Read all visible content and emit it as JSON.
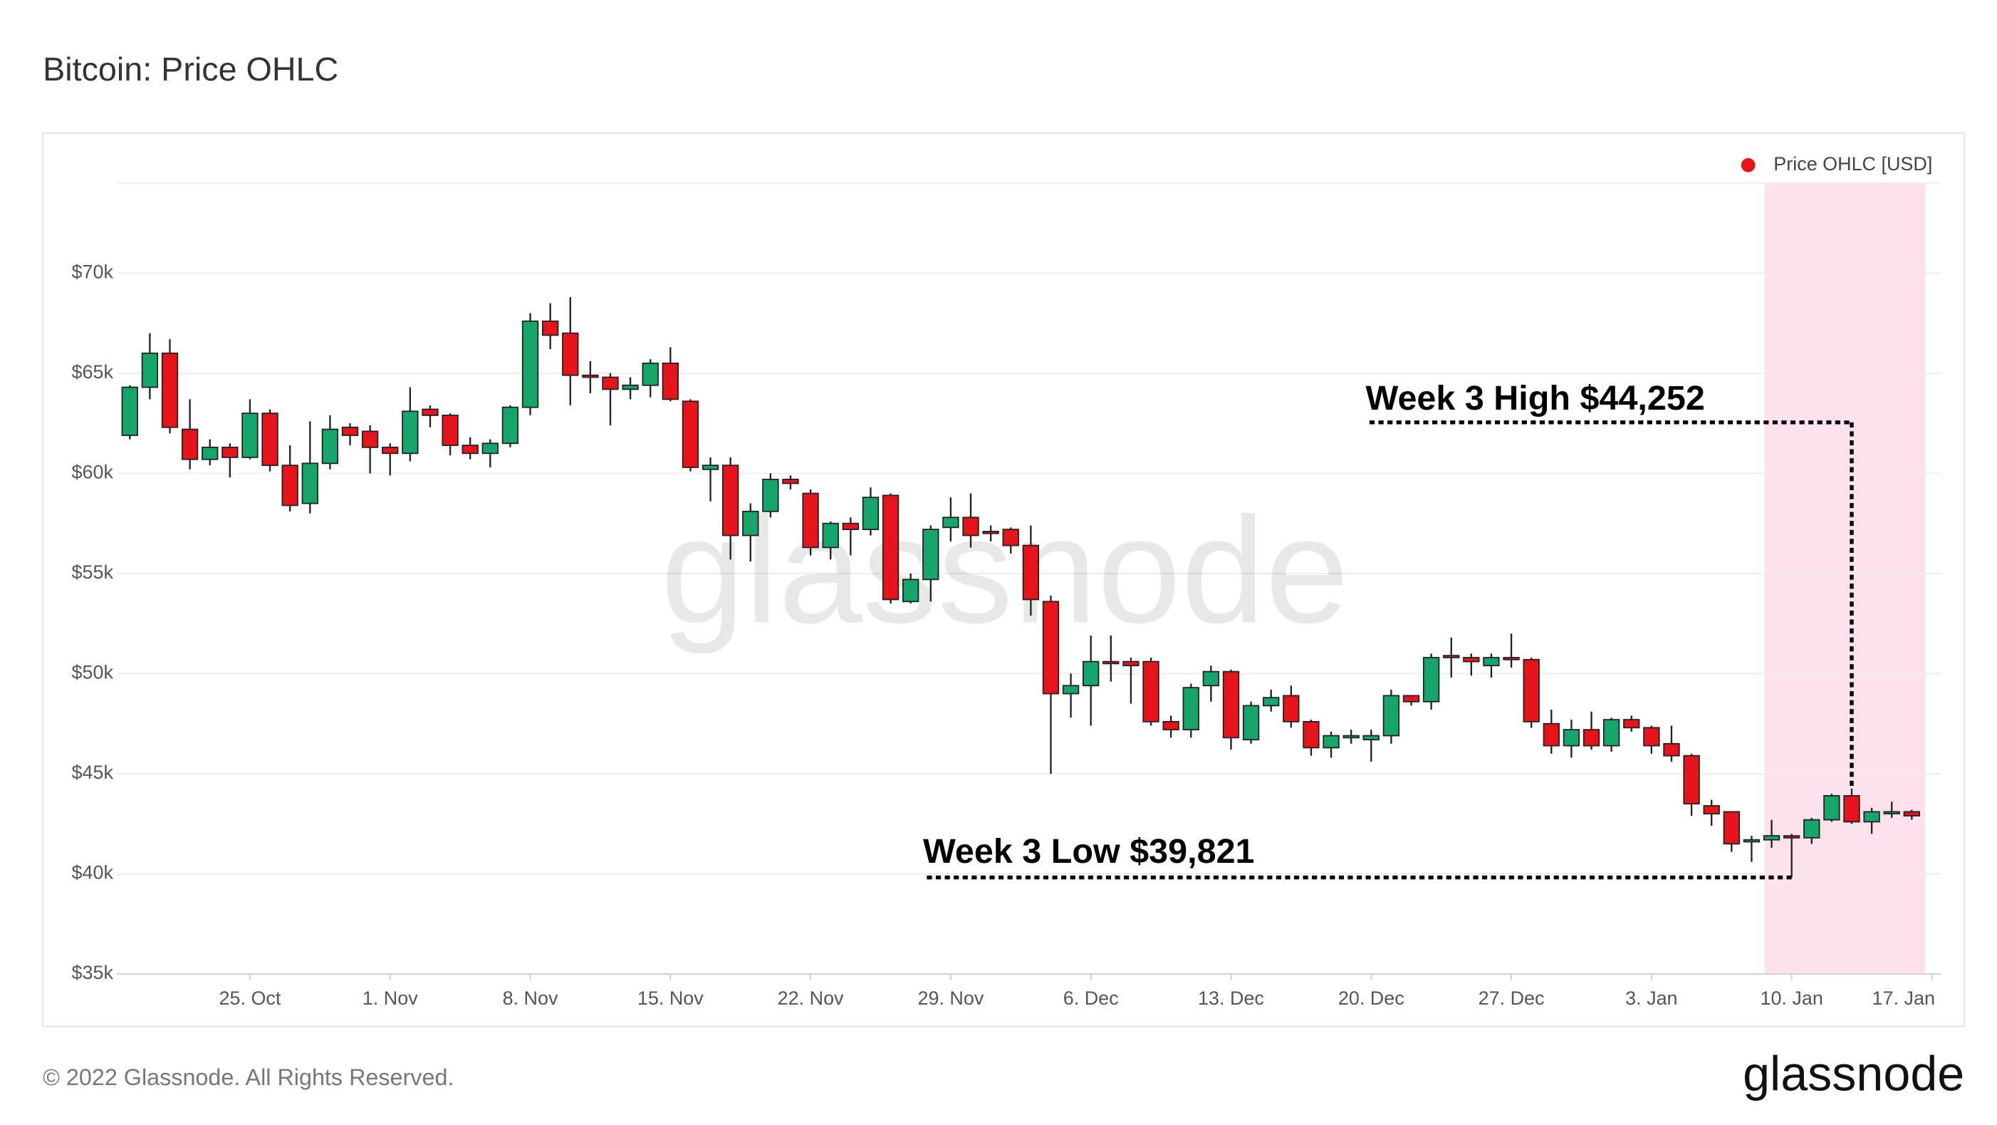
{
  "chart_data": {
    "type": "candlestick",
    "title": "Bitcoin: Price OHLC",
    "categories": [
      null,
      null,
      null,
      null,
      null,
      null,
      "25. Oct",
      null,
      null,
      null,
      null,
      null,
      null,
      "1. Nov",
      null,
      null,
      null,
      null,
      null,
      null,
      "8. Nov",
      null,
      null,
      null,
      null,
      null,
      null,
      "15. Nov",
      null,
      null,
      null,
      null,
      null,
      null,
      "22. Nov",
      null,
      null,
      null,
      null,
      null,
      null,
      "29. Nov",
      null,
      null,
      null,
      null,
      null,
      null,
      "6. Dec",
      null,
      null,
      null,
      null,
      null,
      null,
      "13. Dec",
      null,
      null,
      null,
      null,
      null,
      null,
      "20. Dec",
      null,
      null,
      null,
      null,
      null,
      null,
      "27. Dec",
      null,
      null,
      null,
      null,
      null,
      null,
      "3. Jan",
      null,
      null,
      null,
      null,
      null,
      null,
      "10. Jan",
      null,
      null,
      null,
      null,
      null,
      null,
      "17. Jan"
    ],
    "series": [
      {
        "name": "Price OHLC [USD]",
        "color": "#e8141b",
        "up_color": "#16a56b",
        "down_color": "#e8141b",
        "open": [
          61900,
          64300,
          66000,
          62200,
          60700,
          61300,
          60800,
          63000,
          60400,
          58500,
          60500,
          62300,
          62100,
          61300,
          61000,
          63200,
          62900,
          61400,
          61000,
          61500,
          63300,
          67600,
          67000,
          64900,
          64800,
          64200,
          64400,
          65500,
          63600,
          60200,
          60400,
          56900,
          58100,
          59700,
          59000,
          56300,
          57500,
          57200,
          58900,
          53600,
          54700,
          57300,
          57800,
          57100,
          57200,
          56400,
          53600,
          49000,
          49400,
          50600,
          50600,
          50600,
          47600,
          47200,
          49400,
          50100,
          46700,
          48400,
          48900,
          47600,
          46300,
          46800,
          46700,
          46900,
          48900,
          48600,
          50900,
          50800,
          50400,
          50800,
          50700,
          47500,
          46400,
          47200,
          46400,
          47700,
          47300,
          46500,
          45900,
          43400,
          43100,
          41600,
          41700,
          41900,
          41800,
          42700,
          43900,
          42600,
          43100,
          43100,
          null
        ],
        "high": [
          64400,
          67000,
          66700,
          63700,
          61700,
          61500,
          63700,
          63200,
          61400,
          62600,
          62900,
          62500,
          62400,
          61500,
          64300,
          63400,
          63000,
          61800,
          61700,
          63400,
          68000,
          68500,
          68800,
          65600,
          65000,
          64800,
          65700,
          66300,
          63700,
          60800,
          60800,
          58500,
          60000,
          59900,
          59200,
          57600,
          57800,
          59300,
          59000,
          55000,
          57400,
          58800,
          59000,
          57400,
          57300,
          57400,
          53900,
          50000,
          51900,
          51900,
          50800,
          50800,
          47900,
          49500,
          50400,
          50200,
          48600,
          49200,
          49400,
          47700,
          47100,
          47200,
          47200,
          49200,
          48900,
          51000,
          51800,
          51000,
          51000,
          52000,
          50800,
          48200,
          47700,
          48100,
          47800,
          47900,
          47400,
          47400,
          46000,
          43700,
          43100,
          41900,
          42700,
          42000,
          42800,
          44000,
          44252,
          43300,
          43600,
          43200,
          null
        ],
        "low": [
          61700,
          63700,
          62000,
          60200,
          60400,
          59800,
          60700,
          60100,
          58100,
          58000,
          60200,
          61400,
          60000,
          59900,
          60600,
          62300,
          60900,
          60700,
          60300,
          61300,
          62900,
          66200,
          63400,
          64000,
          62400,
          63700,
          63800,
          63600,
          60100,
          58600,
          55700,
          55600,
          57800,
          59200,
          55900,
          55700,
          55900,
          56900,
          53500,
          53500,
          53600,
          56600,
          56300,
          56600,
          56000,
          52900,
          45000,
          47800,
          47400,
          49600,
          48500,
          47400,
          46800,
          46800,
          48600,
          46200,
          46500,
          48100,
          47300,
          45900,
          45800,
          46500,
          45600,
          46500,
          48400,
          48200,
          49800,
          49900,
          49800,
          50300,
          47300,
          46000,
          45800,
          46200,
          46100,
          47100,
          46000,
          45600,
          42900,
          42400,
          41100,
          40600,
          41300,
          39821,
          41500,
          42600,
          42500,
          42000,
          42800,
          42700,
          null
        ],
        "close": [
          64300,
          66000,
          62300,
          60700,
          61300,
          60800,
          63000,
          60400,
          58400,
          60500,
          62200,
          61900,
          61300,
          61000,
          63100,
          62900,
          61400,
          61000,
          61500,
          63300,
          67600,
          66900,
          64900,
          64800,
          64200,
          64400,
          65500,
          63700,
          60300,
          60400,
          56900,
          58100,
          59700,
          59500,
          56300,
          57500,
          57200,
          58800,
          53700,
          54700,
          57200,
          57800,
          56900,
          57000,
          56400,
          53700,
          49000,
          49400,
          50600,
          50500,
          50400,
          47600,
          47200,
          49300,
          50100,
          46800,
          48400,
          48800,
          47600,
          46300,
          46900,
          46900,
          46900,
          48900,
          48600,
          50800,
          50800,
          50600,
          50800,
          50700,
          47600,
          46400,
          47200,
          46400,
          47700,
          47300,
          46400,
          45900,
          43500,
          43000,
          41500,
          41700,
          41900,
          41800,
          42700,
          43900,
          42600,
          43100,
          43100,
          42900,
          null
        ]
      }
    ],
    "ylim": [
      35000,
      74500
    ],
    "yticks": [
      {
        "value": 35000,
        "label": "$35k"
      },
      {
        "value": 40000,
        "label": "$40k"
      },
      {
        "value": 45000,
        "label": "$45k"
      },
      {
        "value": 50000,
        "label": "$50k"
      },
      {
        "value": 55000,
        "label": "$55k"
      },
      {
        "value": 60000,
        "label": "$60k"
      },
      {
        "value": 65000,
        "label": "$65k"
      },
      {
        "value": 70000,
        "label": "$70k"
      }
    ],
    "grid": true,
    "legend": "top-right",
    "highlight": {
      "start": "10. Jan",
      "end": "17. Jan",
      "color": "#fde1ec"
    },
    "annotations": [
      {
        "text": "Week 3 High $44,252",
        "value": 44252,
        "kind": "high"
      },
      {
        "text": "Week 3 Low $39,821",
        "value": 39821,
        "kind": "low"
      }
    ],
    "watermark": "glassnode"
  },
  "footer": {
    "copyright": "© 2022 Glassnode. All Rights Reserved.",
    "logo": "glassnode"
  }
}
